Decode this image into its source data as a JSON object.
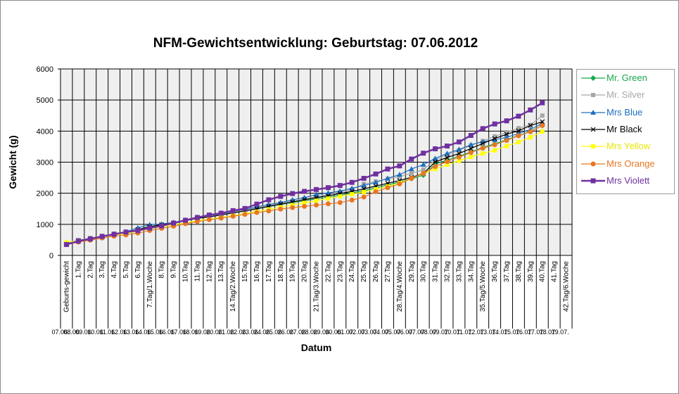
{
  "chart_data": {
    "type": "line",
    "title": "NFM-Gewichtsentwicklung: Geburtstag: 07.06.2012",
    "xlabel": "Datum",
    "ylabel": "Gewicht (g)",
    "ylim": [
      0,
      6000
    ],
    "yticks": [
      "0",
      "1000",
      "2000",
      "3000",
      "4000",
      "5000",
      "6000"
    ],
    "grid": true,
    "legend_position": "right",
    "categories": [
      "Geburts-gewicht",
      "1.Tag",
      "2.Tag",
      "3.Tag",
      "4.Tag",
      "5.Tag",
      "6.Tag",
      "7.Tag/1.Woche",
      "8.Tag",
      "9.Tag",
      "10.Tag",
      "11.Tag",
      "12.Tag",
      "13.Tag",
      "14.Tag/2.Woche",
      "15.Tag",
      "16.Tag",
      "17.Tag",
      "18.Tag",
      "19.Tag",
      "20.Tag",
      "21.Tag/3.Woche",
      "22.Tag",
      "23.Tag",
      "24.Tag",
      "25.Tag",
      "26.Tag",
      "27.Tag",
      "28.Tag/4.Woche",
      "29.Tag",
      "30.Tag",
      "31.Tag",
      "32.Tag",
      "33.Tag",
      "34.Tag",
      "35.Tag/5.Woche",
      "36.Tag",
      "37.Tag",
      "38.Tag",
      "39.Tag",
      "40.Tag",
      "41.Tag",
      "42.Tag/6.Woche"
    ],
    "dates": [
      "07.06.",
      "08.06.",
      "09.06.",
      "10.06.",
      "11.06.",
      "12.06.",
      "13.06.",
      "14.06.",
      "15.06.",
      "16.06.",
      "17.06.",
      "18.06.",
      "19.06.",
      "20.06.",
      "21.06.",
      "22.06.",
      "23.06.",
      "24.06.",
      "25.06.",
      "26.06.",
      "27.06.",
      "28.06.",
      "29.06.",
      "30.06.",
      "01.07.",
      "02.07.",
      "03.07.",
      "04.07.",
      "05.07.",
      "06.07.",
      "07.07.",
      "08.07.",
      "09.07.",
      "10.07.",
      "11.07.",
      "12.07.",
      "13.07.",
      "14.07.",
      "15.07.",
      "16.07.",
      "17.07.",
      "18.07.",
      "19.07."
    ],
    "series": [
      {
        "name": "Mr. Green",
        "color": "#1aa64a",
        "marker": "diamond",
        "values": [
          380,
          480,
          530,
          600,
          680,
          730,
          810,
          900,
          960,
          1020,
          1120,
          1200,
          1260,
          1310,
          1370,
          1430,
          1500,
          1570,
          1640,
          1700,
          1760,
          1820,
          1880,
          1940,
          2010,
          2080,
          2170,
          2270,
          2360,
          2470,
          2580,
          2940,
          3070,
          3190,
          3330,
          3470,
          3590,
          3720,
          3860,
          3990,
          4180,
          null,
          null
        ]
      },
      {
        "name": "Mr. Silver",
        "color": "#a6a6a6",
        "marker": "square",
        "values": [
          400,
          490,
          560,
          630,
          700,
          750,
          830,
          920,
          980,
          1040,
          1130,
          1210,
          1270,
          1320,
          1390,
          1450,
          1530,
          1600,
          1680,
          1750,
          1820,
          1890,
          1960,
          2040,
          2120,
          2300,
          2380,
          2460,
          2540,
          2640,
          2760,
          3080,
          3230,
          3380,
          3540,
          3680,
          3830,
          3960,
          4090,
          4200,
          4500,
          null,
          null
        ]
      },
      {
        "name": "Mrs Blue",
        "color": "#1f6fbf",
        "marker": "triangle",
        "values": [
          360,
          470,
          540,
          610,
          690,
          760,
          890,
          990,
          1010,
          1060,
          1140,
          1230,
          1290,
          1330,
          1420,
          1480,
          1560,
          1640,
          1700,
          1790,
          1860,
          1960,
          2010,
          2070,
          2160,
          2250,
          2350,
          2480,
          2600,
          2780,
          2920,
          3120,
          3280,
          3410,
          3560,
          3660,
          3720,
          3800,
          3920,
          4050,
          4250,
          null,
          null
        ]
      },
      {
        "name": "Mr Black",
        "color": "#000000",
        "marker": "x",
        "values": [
          370,
          480,
          540,
          610,
          680,
          740,
          830,
          930,
          990,
          1040,
          1120,
          1190,
          1240,
          1300,
          1370,
          1430,
          1500,
          1580,
          1650,
          1720,
          1790,
          1860,
          1920,
          1990,
          2060,
          2140,
          2230,
          2320,
          2410,
          2510,
          2640,
          3010,
          3150,
          3280,
          3440,
          3600,
          3760,
          3900,
          4010,
          4180,
          4300,
          null,
          null
        ]
      },
      {
        "name": "Mrs Yellow",
        "color": "#ffff00",
        "marker": "square",
        "values": [
          420,
          470,
          520,
          590,
          660,
          700,
          780,
          860,
          920,
          980,
          1050,
          1120,
          1170,
          1220,
          1280,
          1340,
          1410,
          1480,
          1550,
          1620,
          1690,
          1760,
          1830,
          1900,
          1970,
          2040,
          2130,
          2220,
          2330,
          2480,
          2640,
          2780,
          2920,
          3040,
          3170,
          3280,
          3380,
          3520,
          3650,
          3800,
          3990,
          null,
          null
        ]
      },
      {
        "name": "Mrs Orange",
        "color": "#e87722",
        "marker": "circle",
        "values": [
          350,
          430,
          490,
          560,
          620,
          660,
          720,
          800,
          870,
          940,
          1020,
          1090,
          1150,
          1200,
          1260,
          1320,
          1380,
          1430,
          1490,
          1540,
          1580,
          1620,
          1660,
          1700,
          1780,
          1880,
          2050,
          2180,
          2300,
          2480,
          2640,
          2860,
          3020,
          3160,
          3310,
          3450,
          3560,
          3700,
          3850,
          3980,
          4180,
          null,
          null
        ]
      },
      {
        "name": "Mrs Violett",
        "color": "#7030a0",
        "marker": "square",
        "values": [
          350,
          460,
          530,
          610,
          680,
          750,
          800,
          880,
          950,
          1040,
          1130,
          1220,
          1300,
          1360,
          1440,
          1510,
          1650,
          1790,
          1900,
          1990,
          2060,
          2120,
          2180,
          2250,
          2350,
          2480,
          2620,
          2780,
          2880,
          3100,
          3290,
          3430,
          3520,
          3650,
          3860,
          4080,
          4230,
          4330,
          4480,
          4680,
          4910,
          null,
          null
        ]
      }
    ]
  }
}
